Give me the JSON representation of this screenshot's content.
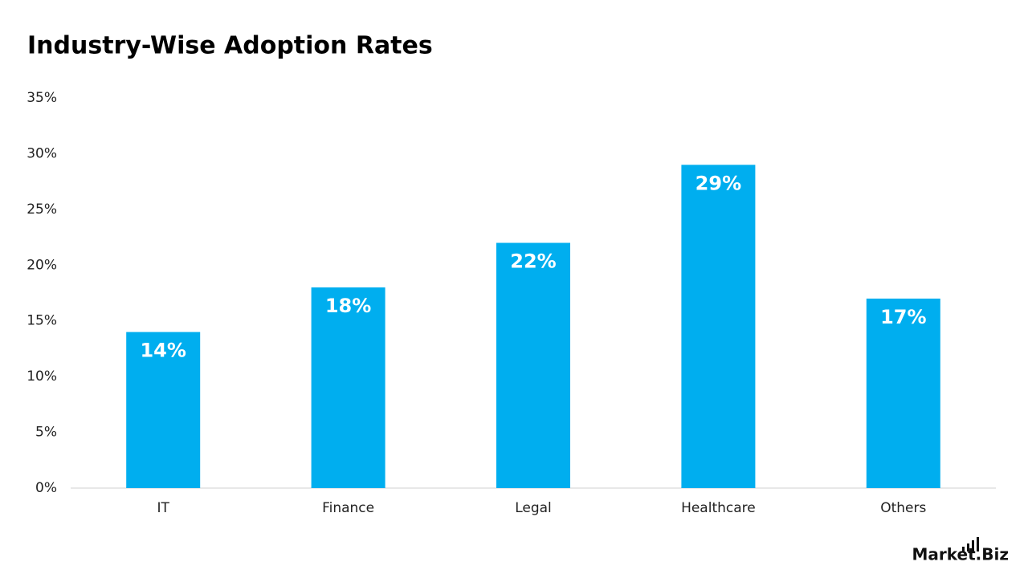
{
  "chart_data": {
    "type": "bar",
    "title": "Industry-Wise Adoption Rates",
    "categories": [
      "IT",
      "Finance",
      "Legal",
      "Healthcare",
      "Others"
    ],
    "values": [
      14,
      18,
      22,
      29,
      17
    ],
    "value_labels": [
      "14%",
      "18%",
      "22%",
      "29%",
      "17%"
    ],
    "color": "#00aeef",
    "ylim": [
      0,
      35
    ],
    "yticks": [
      {
        "value": 0,
        "label": "0%"
      },
      {
        "value": 5,
        "label": "5%"
      },
      {
        "value": 10,
        "label": "10%"
      },
      {
        "value": 15,
        "label": "15%"
      },
      {
        "value": 20,
        "label": "20%"
      },
      {
        "value": 25,
        "label": "25%"
      },
      {
        "value": 30,
        "label": "30%"
      },
      {
        "value": 35,
        "label": "35%"
      }
    ],
    "grid": false
  },
  "logo": "Market.Biz"
}
